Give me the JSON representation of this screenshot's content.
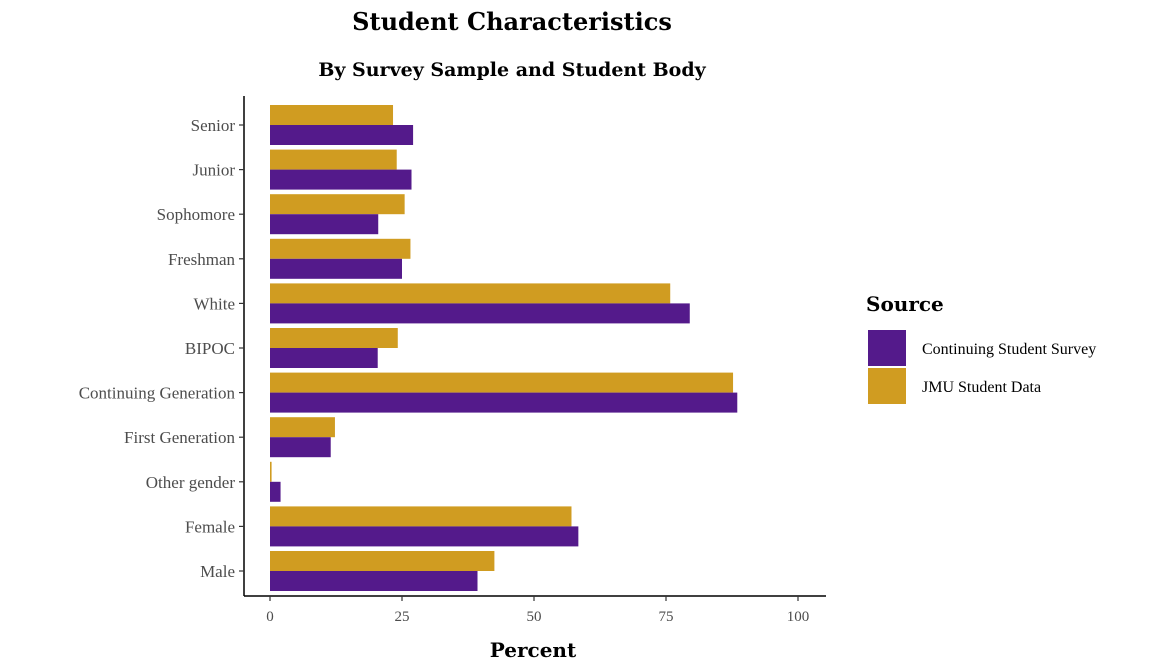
{
  "chart_data": {
    "type": "bar",
    "orientation": "horizontal",
    "title": "Student Characteristics",
    "subtitle": "By Survey Sample and Student Body",
    "xlabel": "Percent",
    "ylabel": "",
    "xlim": [
      0,
      100
    ],
    "x_ticks": [
      0,
      25,
      50,
      75,
      100
    ],
    "grid": false,
    "categories": [
      "Male",
      "Female",
      "Other gender",
      "First Generation",
      "Continuing Generation",
      "BIPOC",
      "White",
      "Freshman",
      "Sophomore",
      "Junior",
      "Senior"
    ],
    "series": [
      {
        "name": "Continuing Student Survey",
        "color": "#541a8b",
        "values": [
          39.3,
          58.4,
          2.0,
          11.5,
          88.5,
          20.4,
          79.5,
          25.0,
          20.5,
          26.8,
          27.1
        ]
      },
      {
        "name": "JMU Student Data",
        "color": "#d09c21",
        "values": [
          42.5,
          57.1,
          0.3,
          12.3,
          87.7,
          24.2,
          75.8,
          26.6,
          25.5,
          24.0,
          23.3
        ]
      }
    ],
    "legend": {
      "title": "Source",
      "position": "right"
    }
  }
}
